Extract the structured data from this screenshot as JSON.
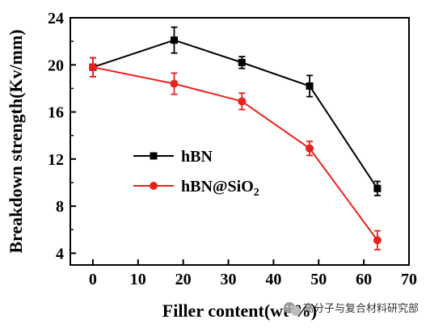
{
  "chart_data": {
    "type": "line",
    "xlabel": "Filler content(wt %)",
    "ylabel": "Breakdown strength(Kv/mm)",
    "xlim": [
      -5,
      70
    ],
    "ylim": [
      3,
      24
    ],
    "xticks": [
      0,
      10,
      20,
      30,
      40,
      50,
      60,
      70
    ],
    "yticks": [
      4,
      8,
      12,
      16,
      20,
      24
    ],
    "legend_position": "center-left",
    "series": [
      {
        "name": "hBN",
        "color": "#000000",
        "marker": "square",
        "x": [
          0,
          18,
          33,
          48,
          63
        ],
        "y": [
          19.8,
          22.1,
          20.2,
          18.2,
          9.5
        ],
        "err": [
          0.8,
          1.1,
          0.5,
          0.9,
          0.6
        ]
      },
      {
        "name": "hBN@SiO2",
        "name_base": "hBN@SiO",
        "name_sub": "2",
        "color": "#e8231f",
        "marker": "circle",
        "x": [
          0,
          18,
          33,
          48,
          63
        ],
        "y": [
          19.8,
          18.4,
          16.9,
          12.9,
          5.1
        ],
        "err": [
          0.8,
          0.9,
          0.7,
          0.6,
          0.8
        ]
      }
    ]
  },
  "watermark": {
    "text": "高分子与复合材料研究部",
    "icon": "wechat-icon"
  }
}
